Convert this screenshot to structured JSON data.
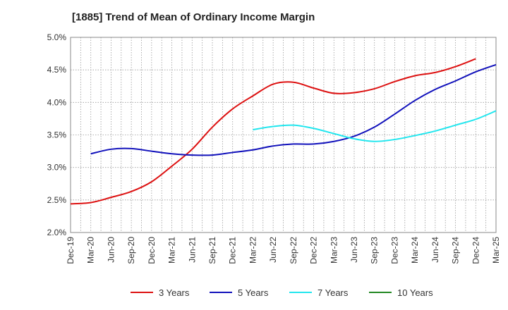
{
  "chart_data": {
    "type": "line",
    "title": "[1885]  Trend of Mean of Ordinary Income Margin",
    "xlabel": "",
    "ylabel": "",
    "ylim": [
      2.0,
      5.0
    ],
    "y_ticks": [
      "2.0%",
      "2.5%",
      "3.0%",
      "3.5%",
      "4.0%",
      "4.5%",
      "5.0%"
    ],
    "y_tick_values": [
      2.0,
      2.5,
      3.0,
      3.5,
      4.0,
      4.5,
      5.0
    ],
    "x_ticks": [
      "Dec-19",
      "Mar-20",
      "Jun-20",
      "Sep-20",
      "Dec-20",
      "Mar-21",
      "Jun-21",
      "Sep-21",
      "Dec-21",
      "Mar-22",
      "Jun-22",
      "Sep-22",
      "Dec-22",
      "Mar-23",
      "Jun-23",
      "Sep-23",
      "Dec-23",
      "Mar-24",
      "Jun-24",
      "Sep-24",
      "Dec-24",
      "Mar-25"
    ],
    "grid": true,
    "legend_position": "bottom",
    "series": [
      {
        "name": "3 Years",
        "color": "#dd1111",
        "start_index": 0,
        "values": [
          2.44,
          2.46,
          2.54,
          2.63,
          2.78,
          3.02,
          3.28,
          3.62,
          3.9,
          4.1,
          4.28,
          4.31,
          4.22,
          4.14,
          4.15,
          4.21,
          4.32,
          4.41,
          4.46,
          4.55,
          4.67
        ]
      },
      {
        "name": "5 Years",
        "color": "#1111bb",
        "start_index": 1,
        "values": [
          3.21,
          3.28,
          3.29,
          3.25,
          3.21,
          3.19,
          3.19,
          3.23,
          3.27,
          3.33,
          3.36,
          3.36,
          3.4,
          3.48,
          3.62,
          3.82,
          4.03,
          4.2,
          4.33,
          4.47,
          4.58
        ]
      },
      {
        "name": "7 Years",
        "color": "#22e6ee",
        "start_index": 9,
        "values": [
          3.58,
          3.63,
          3.65,
          3.6,
          3.52,
          3.44,
          3.4,
          3.43,
          3.49,
          3.56,
          3.65,
          3.74,
          3.87
        ]
      },
      {
        "name": "10 Years",
        "color": "#228822",
        "start_index": 0,
        "values": []
      }
    ]
  }
}
